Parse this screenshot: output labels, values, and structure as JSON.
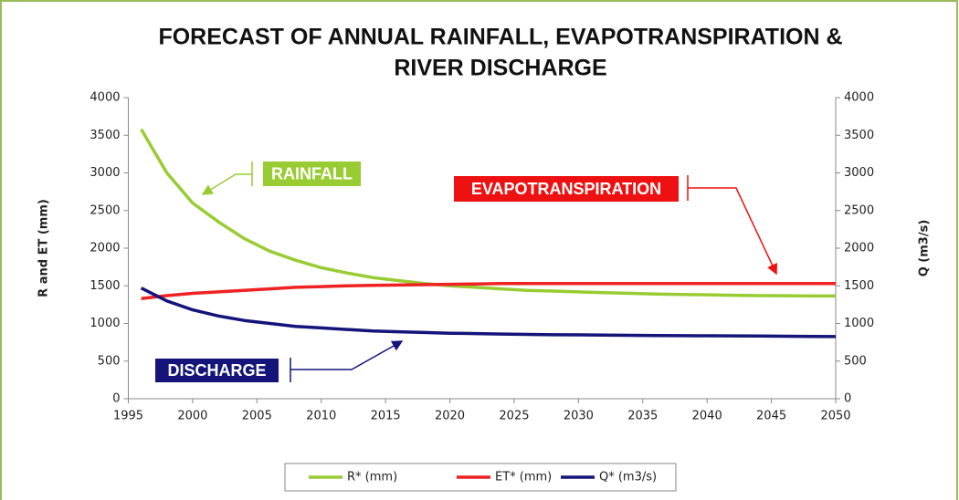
{
  "chart_data": {
    "type": "line",
    "title": [
      "FORECAST OF ANNUAL RAINFALL, EVAPOTRANSPIRATION &",
      "RIVER DISCHARGE"
    ],
    "y_label": "R and ET (mm)",
    "y2_label": "Q (m3/s)",
    "x": [
      1996,
      1998,
      2000,
      2002,
      2004,
      2006,
      2008,
      2010,
      2012,
      2014,
      2016,
      2018,
      2020,
      2022,
      2024,
      2026,
      2028,
      2030,
      2032,
      2034,
      2036,
      2038,
      2040,
      2042,
      2044,
      2046,
      2048,
      2050
    ],
    "series": [
      {
        "name": "R* (mm)",
        "color": "#99cc33",
        "values": [
          3580,
          3000,
          2600,
          2350,
          2130,
          1960,
          1840,
          1740,
          1670,
          1610,
          1570,
          1530,
          1500,
          1480,
          1460,
          1440,
          1430,
          1420,
          1410,
          1400,
          1390,
          1385,
          1380,
          1375,
          1370,
          1368,
          1365,
          1365
        ]
      },
      {
        "name": "ET* (mm)",
        "color": "#ee2222",
        "values": [
          1330,
          1370,
          1400,
          1420,
          1440,
          1460,
          1480,
          1490,
          1500,
          1505,
          1510,
          1515,
          1520,
          1525,
          1530,
          1530,
          1530,
          1530,
          1530,
          1530,
          1530,
          1530,
          1530,
          1530,
          1530,
          1530,
          1530,
          1530
        ]
      },
      {
        "name": "Q* (m3/s)",
        "color": "#14147a",
        "axis": "y2",
        "values": [
          1470,
          1300,
          1180,
          1100,
          1040,
          1000,
          960,
          940,
          920,
          900,
          890,
          880,
          870,
          865,
          860,
          855,
          850,
          848,
          845,
          842,
          840,
          838,
          836,
          835,
          833,
          830,
          828,
          826
        ]
      }
    ],
    "xlim": [
      1995,
      2050
    ],
    "xticks": [
      1995,
      2000,
      2005,
      2010,
      2015,
      2020,
      2025,
      2030,
      2035,
      2040,
      2045,
      2050
    ],
    "ylim": [
      0,
      4000
    ],
    "yticks": [
      0,
      500,
      1000,
      1500,
      2000,
      2500,
      3000,
      3500,
      4000
    ],
    "y2lim": [
      0,
      4000
    ],
    "y2ticks": [
      0,
      500,
      1000,
      1500,
      2000,
      2500,
      3000,
      3500,
      4000
    ],
    "grid": false,
    "legend": "bottom",
    "annotations": [
      {
        "text": "RAINFALL",
        "color": "#99cc33"
      },
      {
        "text": "EVAPOTRANSPIRATION",
        "color": "#ee1111"
      },
      {
        "text": "DISCHARGE",
        "color": "#14147a"
      }
    ]
  }
}
